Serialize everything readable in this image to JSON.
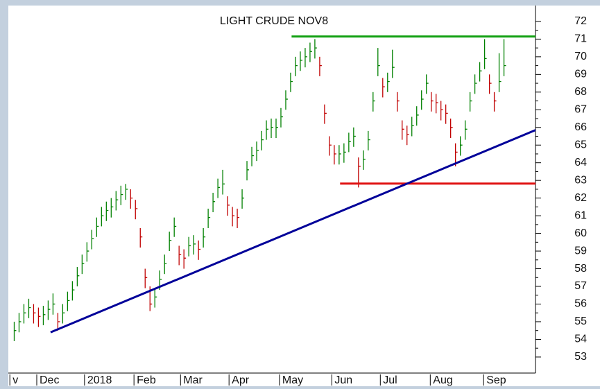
{
  "chart_data": {
    "type": "ohlc",
    "title": "LIGHT CRUDE NOV8",
    "up_color": "#008000",
    "down_color": "#c00000",
    "xlim": [
      -1.5,
      107.5
    ],
    "ylim": [
      52.8,
      72.9
    ],
    "yticks": [
      53,
      54,
      55,
      56,
      57,
      58,
      59,
      60,
      61,
      62,
      63,
      64,
      65,
      66,
      67,
      68,
      69,
      70,
      71,
      72
    ],
    "xticks": [
      {
        "value": -0.9,
        "label": "v"
      },
      {
        "value": 4.65,
        "label": "Dec"
      },
      {
        "value": 14.5,
        "label": "2018"
      },
      {
        "value": 24.7,
        "label": "Feb"
      },
      {
        "value": 34.3,
        "label": "Mar"
      },
      {
        "value": 44.3,
        "label": "Apr"
      },
      {
        "value": 54.7,
        "label": "May"
      },
      {
        "value": 65.5,
        "label": "Jun"
      },
      {
        "value": 75.5,
        "label": "Jul"
      },
      {
        "value": 85.8,
        "label": "Aug"
      },
      {
        "value": 96.8,
        "label": "Sep"
      }
    ],
    "high": [
      55.0,
      55.5,
      56.0,
      56.3,
      56.0,
      55.8,
      55.9,
      56.2,
      56.6,
      55.5,
      56.0,
      56.7,
      57.3,
      58.1,
      58.8,
      59.5,
      60.2,
      60.9,
      61.5,
      61.8,
      62.0,
      62.4,
      62.7,
      62.8,
      62.5,
      61.9,
      60.3,
      58.0,
      57.0,
      56.9,
      57.9,
      58.8,
      60.1,
      60.9,
      59.3,
      59.1,
      59.8,
      59.9,
      59.6,
      60.3,
      61.4,
      62.3,
      63.1,
      63.6,
      62.1,
      61.5,
      61.4,
      62.5,
      64.1,
      64.9,
      65.2,
      65.8,
      66.4,
      66.5,
      66.5,
      67.1,
      68.1,
      69.1,
      70.0,
      70.3,
      70.5,
      70.8,
      71.0,
      70.0,
      67.3,
      65.5,
      65.0,
      65.0,
      65.1,
      65.7,
      66.0,
      64.3,
      64.7,
      65.8,
      68.0,
      70.5,
      68.8,
      69.1,
      70.4,
      68.0,
      66.4,
      66.1,
      66.6,
      67.2,
      68.1,
      69.0,
      68.0,
      67.9,
      67.5,
      67.3,
      66.5,
      65.1,
      65.5,
      66.4,
      68.0,
      69.0,
      69.7,
      71.0,
      69.0,
      68.0,
      70.2,
      71.0
    ],
    "low": [
      53.9,
      54.4,
      54.9,
      55.2,
      54.9,
      54.7,
      54.8,
      55.1,
      55.4,
      54.5,
      54.9,
      55.6,
      56.2,
      57.0,
      57.7,
      58.4,
      59.1,
      59.8,
      60.4,
      60.7,
      60.9,
      61.3,
      61.6,
      61.9,
      61.4,
      60.8,
      59.2,
      56.9,
      55.6,
      55.8,
      56.8,
      57.7,
      59.0,
      59.8,
      58.2,
      58.0,
      58.7,
      58.8,
      58.5,
      59.2,
      60.3,
      61.2,
      62.0,
      62.2,
      61.0,
      60.4,
      60.3,
      61.4,
      63.0,
      63.8,
      64.1,
      64.7,
      65.3,
      65.4,
      65.4,
      66.0,
      67.0,
      68.0,
      68.9,
      69.2,
      69.4,
      69.7,
      69.9,
      68.9,
      66.2,
      64.4,
      63.9,
      63.9,
      64.0,
      64.6,
      64.9,
      62.6,
      63.6,
      64.7,
      66.9,
      68.9,
      67.7,
      68.0,
      68.8,
      66.9,
      65.3,
      65.0,
      65.5,
      66.1,
      67.0,
      67.9,
      66.9,
      66.8,
      66.4,
      66.2,
      65.4,
      63.8,
      64.4,
      65.3,
      66.9,
      67.9,
      68.6,
      69.3,
      67.9,
      66.9,
      68.0,
      68.9
    ],
    "close": [
      54.5,
      55.0,
      55.5,
      55.8,
      55.5,
      55.3,
      55.4,
      55.7,
      56.0,
      55.0,
      55.5,
      56.2,
      56.8,
      57.6,
      58.3,
      59.0,
      59.7,
      60.4,
      61.0,
      61.3,
      61.5,
      61.9,
      62.2,
      62.5,
      62.0,
      61.4,
      59.8,
      57.5,
      56.0,
      56.4,
      57.4,
      58.3,
      59.6,
      60.4,
      58.8,
      58.6,
      59.3,
      59.4,
      59.1,
      59.8,
      60.9,
      61.8,
      62.6,
      62.8,
      61.6,
      61.0,
      60.9,
      62.0,
      63.6,
      64.4,
      64.7,
      65.3,
      65.9,
      66.0,
      66.0,
      66.6,
      67.6,
      68.6,
      69.5,
      69.8,
      70.0,
      70.3,
      70.5,
      69.5,
      66.8,
      65.0,
      64.5,
      64.5,
      64.6,
      65.2,
      65.5,
      63.8,
      64.2,
      65.3,
      67.5,
      69.5,
      68.3,
      68.6,
      69.4,
      67.5,
      65.9,
      65.6,
      66.1,
      66.7,
      67.6,
      68.5,
      67.5,
      67.4,
      67.0,
      66.8,
      66.0,
      64.6,
      65.0,
      65.9,
      67.5,
      68.5,
      69.2,
      69.9,
      68.5,
      67.5,
      68.6,
      69.5
    ],
    "lines": [
      {
        "x": [
          57.2,
          107.5
        ],
        "y": [
          71.15,
          71.15
        ],
        "color": "#12a012"
      },
      {
        "x": [
          67.2,
          107.5
        ],
        "y": [
          62.82,
          62.82
        ],
        "color": "#e01010"
      },
      {
        "x": [
          7.5,
          107.5
        ],
        "y": [
          54.4,
          65.85
        ],
        "color": "#000099"
      }
    ]
  }
}
